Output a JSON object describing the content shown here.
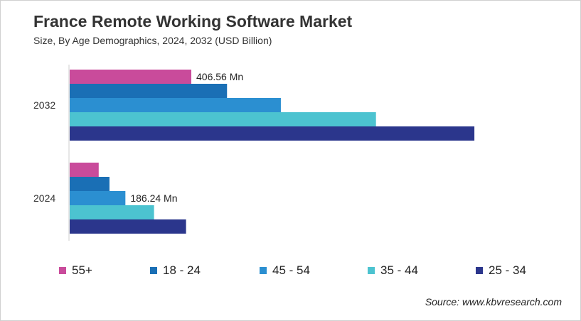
{
  "chart_data": {
    "type": "bar",
    "orientation": "horizontal",
    "title": "France Remote Working Software Market",
    "subtitle": "Size, By Age Demographics, 2024, 2032 (USD Billion)",
    "categories": [
      "2032",
      "2024"
    ],
    "series": [
      {
        "name": "55+",
        "color": "#c94b9b",
        "values": [
          406.56,
          97
        ]
      },
      {
        "name": "18 - 24",
        "color": "#1a6fb5",
        "values": [
          526,
          133
        ]
      },
      {
        "name": "45 - 54",
        "color": "#2b8fd1",
        "values": [
          706,
          186.24
        ]
      },
      {
        "name": "35 - 44",
        "color": "#4cc3d0",
        "values": [
          1024,
          282
        ]
      },
      {
        "name": "25 - 34",
        "color": "#2b368c",
        "values": [
          1353,
          389
        ]
      }
    ],
    "data_labels": [
      {
        "category": "2032",
        "series": "55+",
        "text": "406.56 Mn"
      },
      {
        "category": "2024",
        "series": "45 - 54",
        "text": "186.24 Mn"
      }
    ],
    "xlim": [
      0,
      1520
    ],
    "grid": false,
    "legend_position": "bottom"
  },
  "source": "Source: www.kbvresearch.com"
}
